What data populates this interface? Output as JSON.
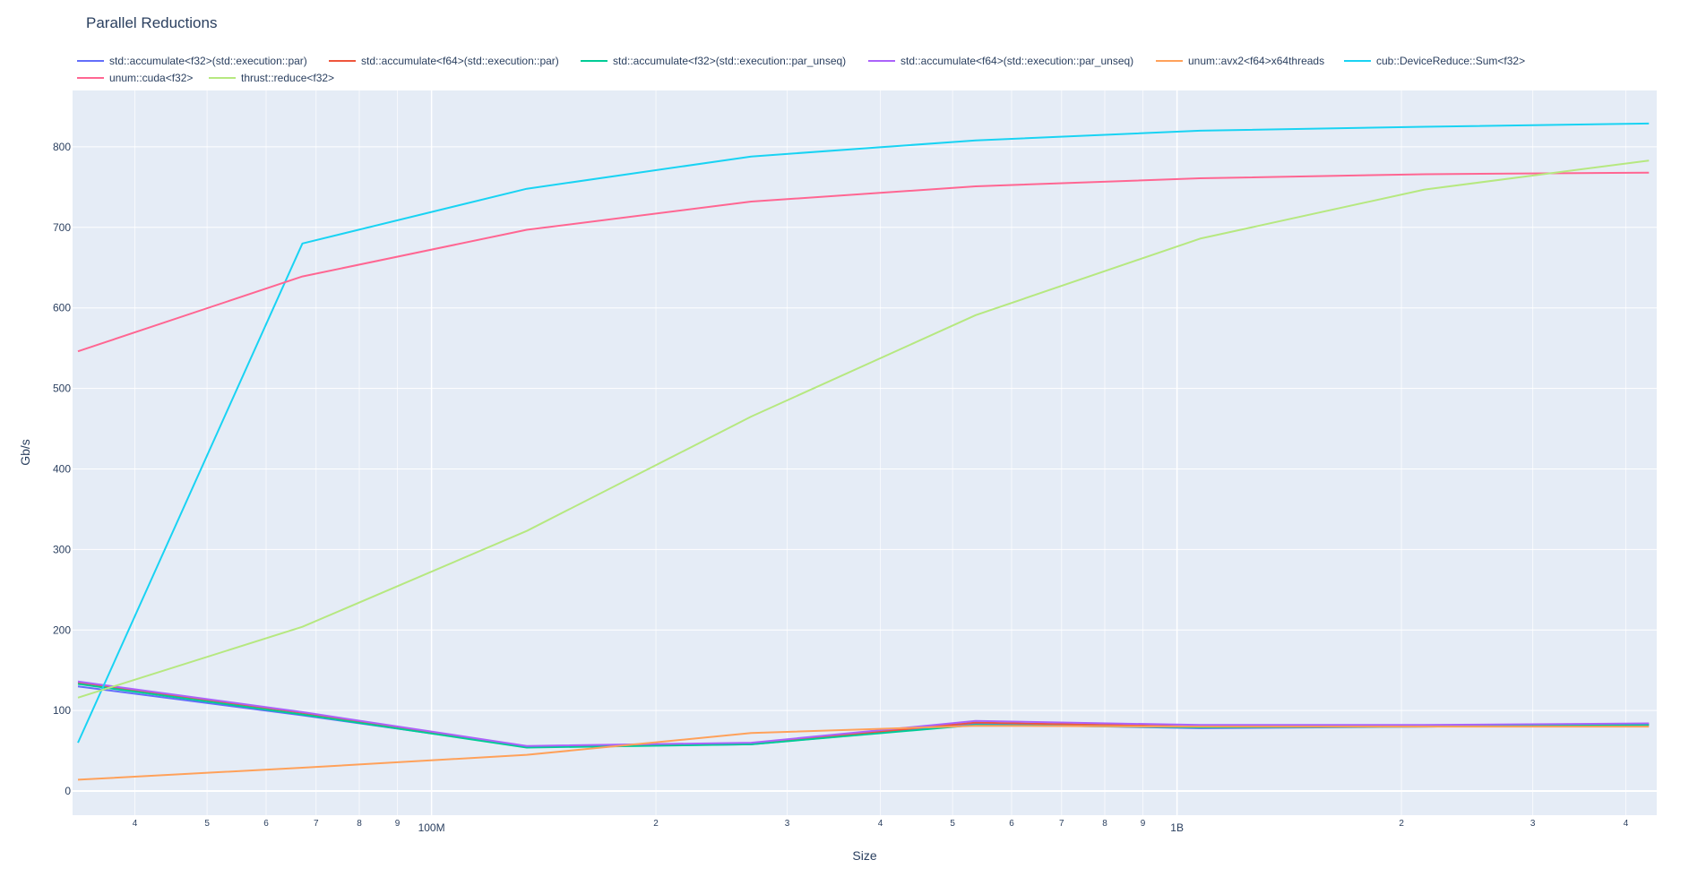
{
  "chart_data": {
    "type": "line",
    "title": "Parallel Reductions",
    "xlabel": "Size",
    "ylabel": "Gb/s",
    "xscale": "log",
    "xlim": [
      33000000,
      4400000000
    ],
    "ylim": [
      -30,
      870
    ],
    "y_ticks": [
      0,
      100,
      200,
      300,
      400,
      500,
      600,
      700,
      800
    ],
    "x_major_ticks": [
      {
        "value": 100000000,
        "label": "100M"
      },
      {
        "value": 1000000000,
        "label": "1B"
      }
    ],
    "x_minor_ticks": [
      {
        "value": 40000000,
        "label": "4"
      },
      {
        "value": 50000000,
        "label": "5"
      },
      {
        "value": 60000000,
        "label": "6"
      },
      {
        "value": 70000000,
        "label": "7"
      },
      {
        "value": 80000000,
        "label": "8"
      },
      {
        "value": 90000000,
        "label": "9"
      },
      {
        "value": 200000000,
        "label": "2"
      },
      {
        "value": 300000000,
        "label": "3"
      },
      {
        "value": 400000000,
        "label": "4"
      },
      {
        "value": 500000000,
        "label": "5"
      },
      {
        "value": 600000000,
        "label": "6"
      },
      {
        "value": 700000000,
        "label": "7"
      },
      {
        "value": 800000000,
        "label": "8"
      },
      {
        "value": 900000000,
        "label": "9"
      },
      {
        "value": 2000000000,
        "label": "2"
      },
      {
        "value": 3000000000,
        "label": "3"
      },
      {
        "value": 4000000000,
        "label": "4"
      }
    ],
    "grid": true,
    "legend_position": "top",
    "x": [
      33554432,
      67108864,
      134217728,
      268435456,
      536870912,
      1073741824,
      2147483648,
      4294967296
    ],
    "series": [
      {
        "name": "std::accumulate<f32>(std::execution::par)",
        "color": "#636efa",
        "values": [
          130,
          94,
          55,
          58,
          83,
          78,
          80,
          82
        ]
      },
      {
        "name": "std::accumulate<f64>(std::execution::par)",
        "color": "#ef553b",
        "values": [
          135,
          97,
          55,
          59,
          85,
          80,
          81,
          83
        ]
      },
      {
        "name": "std::accumulate<f32>(std::execution::par_unseq)",
        "color": "#00cc96",
        "values": [
          133,
          95,
          54,
          58,
          82,
          79,
          80,
          82
        ]
      },
      {
        "name": "std::accumulate<f64>(std::execution::par_unseq)",
        "color": "#ab63fa",
        "values": [
          136,
          98,
          56,
          60,
          87,
          82,
          82,
          84
        ]
      },
      {
        "name": "unum::avx2<f64>x64threads",
        "color": "#ffa15a",
        "values": [
          14,
          29,
          45,
          72,
          81,
          80,
          80,
          80
        ]
      },
      {
        "name": "cub::DeviceReduce::Sum<f32>",
        "color": "#19d3f3",
        "values": [
          60,
          680,
          748,
          788,
          808,
          820,
          825,
          829
        ]
      },
      {
        "name": "unum::cuda<f32>",
        "color": "#ff6692",
        "values": [
          546,
          639,
          697,
          732,
          751,
          761,
          766,
          768
        ]
      },
      {
        "name": "thrust::reduce<f32>",
        "color": "#b6e880",
        "values": [
          116,
          204,
          323,
          465,
          591,
          686,
          747,
          783
        ]
      }
    ]
  }
}
